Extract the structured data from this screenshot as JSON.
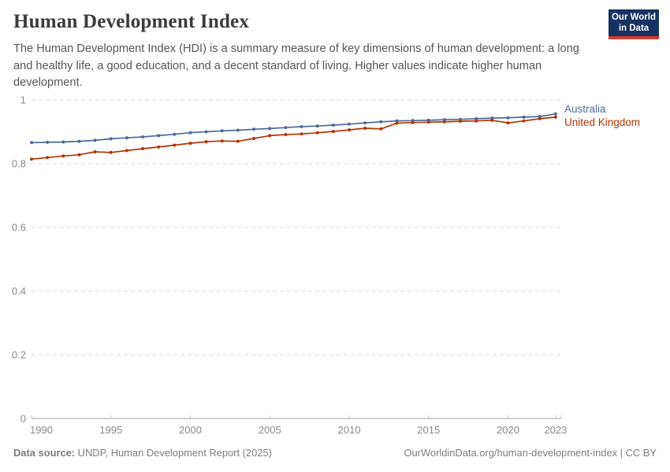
{
  "header": {
    "title": "Human Development Index",
    "subtitle": "The Human Development Index (HDI) is a summary measure of key dimensions of human development: a long and healthy life, a good education, and a decent standard of living. Higher values indicate higher human development.",
    "logo": {
      "line1": "Our World",
      "line2": "in Data"
    }
  },
  "chart_data": {
    "type": "line",
    "title": "Human Development Index",
    "xlabel": "",
    "ylabel": "",
    "x": [
      1990,
      1991,
      1992,
      1993,
      1994,
      1995,
      1996,
      1997,
      1998,
      1999,
      2000,
      2001,
      2002,
      2003,
      2004,
      2005,
      2006,
      2007,
      2008,
      2009,
      2010,
      2011,
      2012,
      2013,
      2014,
      2015,
      2016,
      2017,
      2018,
      2019,
      2020,
      2021,
      2022,
      2023
    ],
    "series": [
      {
        "name": "Australia",
        "color": "#4C6A9C",
        "values": [
          0.866,
          0.867,
          0.868,
          0.87,
          0.873,
          0.878,
          0.881,
          0.884,
          0.888,
          0.892,
          0.897,
          0.9,
          0.903,
          0.905,
          0.908,
          0.91,
          0.913,
          0.916,
          0.918,
          0.921,
          0.924,
          0.928,
          0.931,
          0.934,
          0.935,
          0.936,
          0.938,
          0.939,
          0.941,
          0.943,
          0.944,
          0.946,
          0.948,
          0.956
        ]
      },
      {
        "name": "United Kingdom",
        "color": "#B13507",
        "values": [
          0.814,
          0.819,
          0.824,
          0.828,
          0.837,
          0.835,
          0.841,
          0.847,
          0.852,
          0.858,
          0.864,
          0.869,
          0.871,
          0.87,
          0.879,
          0.888,
          0.891,
          0.893,
          0.897,
          0.901,
          0.906,
          0.911,
          0.909,
          0.927,
          0.929,
          0.93,
          0.931,
          0.933,
          0.934,
          0.936,
          0.928,
          0.934,
          0.941,
          0.946
        ]
      }
    ],
    "ylim": [
      0,
      1
    ],
    "yticks": [
      0,
      0.2,
      0.4,
      0.6,
      0.8,
      1
    ],
    "ytick_labels": [
      "0",
      "0.2",
      "0.4",
      "0.6",
      "0.8",
      "1"
    ],
    "xticks": [
      1990,
      1995,
      2000,
      2005,
      2010,
      2015,
      2020,
      2023
    ],
    "grid": "horizontal-dashed",
    "legend_position": "right-of-line-ends",
    "markers": "point-per-year"
  },
  "footer": {
    "data_source_label": "Data source:",
    "data_source_value": " UNDP, Human Development Report (2025)",
    "attribution": "OurWorldinData.org/human-development-index | CC BY"
  },
  "colors": {
    "australia_line": "#4C6A9C",
    "united_kingdom_line": "#B13507",
    "logo_bg": "#163360",
    "logo_stripe": "#d33b2b",
    "gridline": "#dcdcdc",
    "axis_line": "#a3a3a3",
    "tick_label": "#8a8a8a"
  }
}
